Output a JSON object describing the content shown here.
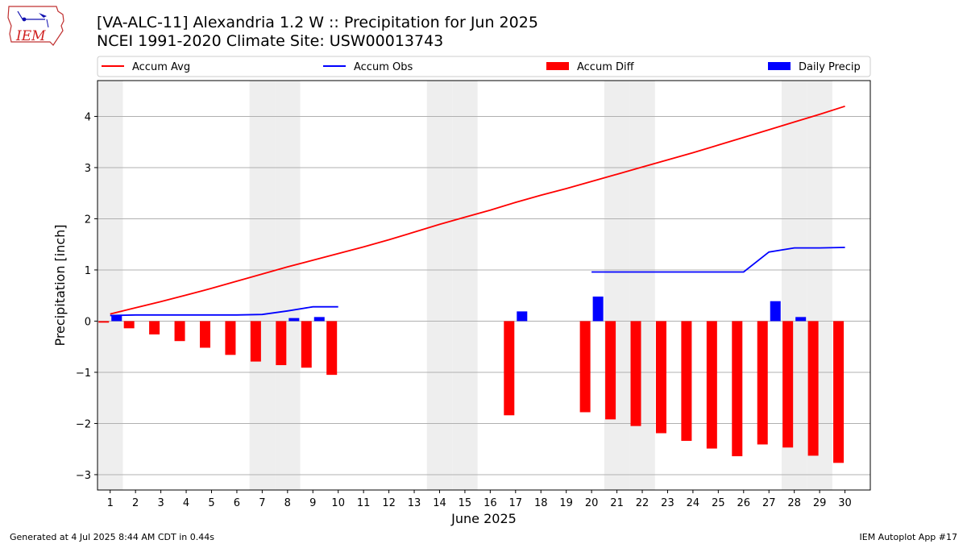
{
  "header": {
    "title_line1": "[VA-ALC-11] Alexandria 1.2 W :: Precipitation for Jun 2025",
    "title_line2": "NCEI 1991-2020 Climate Site: USW00013743",
    "logo_text": "IEM"
  },
  "footer": {
    "left": "Generated at 4 Jul 2025 8:44 AM CDT in 0.44s",
    "right": "IEM Autoplot App #17"
  },
  "colors": {
    "avg": "#ff0000",
    "obs": "#0000ff",
    "diff": "#ff0000",
    "daily": "#0000ff",
    "weekend": "#eeeeee",
    "grid": "#b0b0b0"
  },
  "chart_data": {
    "type": "bar",
    "xlabel": "June 2025",
    "ylabel": "Precipitation [inch]",
    "xlim": [
      0.5,
      31
    ],
    "ylim": [
      -3.3,
      4.7
    ],
    "yticks": [
      -3,
      -2,
      -1,
      0,
      1,
      2,
      3,
      4
    ],
    "ytick_labels": [
      "−3",
      "−2",
      "−1",
      "0",
      "1",
      "2",
      "3",
      "4"
    ],
    "days": [
      1,
      2,
      3,
      4,
      5,
      6,
      7,
      8,
      9,
      10,
      11,
      12,
      13,
      14,
      15,
      16,
      17,
      18,
      19,
      20,
      21,
      22,
      23,
      24,
      25,
      26,
      27,
      28,
      29,
      30
    ],
    "weekend_days": [
      1,
      7,
      8,
      14,
      15,
      21,
      22,
      28,
      29
    ],
    "grid": true,
    "legend_placement": "top, outside",
    "legend": [
      "Accum Avg",
      "Accum Obs",
      "Accum Diff",
      "Daily Precip"
    ],
    "series": [
      {
        "name": "Accum Avg",
        "type": "line",
        "values": [
          0.14,
          0.26,
          0.38,
          0.51,
          0.64,
          0.78,
          0.92,
          1.06,
          1.19,
          1.32,
          1.45,
          1.59,
          1.74,
          1.89,
          2.03,
          2.17,
          2.32,
          2.46,
          2.59,
          2.73,
          2.87,
          3.01,
          3.15,
          3.29,
          3.44,
          3.59,
          3.74,
          3.89,
          4.04,
          4.2
        ]
      },
      {
        "name": "Accum Obs",
        "type": "line",
        "values": [
          0.11,
          0.12,
          0.12,
          0.12,
          0.12,
          0.12,
          0.13,
          0.2,
          0.28,
          0.28,
          null,
          null,
          null,
          null,
          null,
          null,
          null,
          null,
          null,
          0.96,
          0.96,
          0.96,
          0.96,
          0.96,
          0.96,
          0.96,
          1.35,
          1.43,
          1.43,
          1.44
        ]
      },
      {
        "name": "Accum Diff",
        "type": "bar",
        "values": [
          -0.03,
          -0.14,
          -0.26,
          -0.39,
          -0.52,
          -0.66,
          -0.79,
          -0.86,
          -0.91,
          -1.05,
          null,
          null,
          null,
          null,
          null,
          null,
          -1.84,
          null,
          null,
          -1.78,
          -1.92,
          -2.05,
          -2.19,
          -2.34,
          -2.49,
          -2.64,
          -2.41,
          -2.47,
          -2.63,
          -2.77
        ]
      },
      {
        "name": "Daily Precip",
        "type": "bar",
        "values": [
          0.11,
          null,
          null,
          null,
          null,
          null,
          null,
          0.06,
          0.08,
          null,
          null,
          null,
          null,
          null,
          null,
          null,
          0.19,
          null,
          null,
          0.48,
          null,
          null,
          null,
          null,
          null,
          null,
          0.39,
          0.08,
          null,
          null
        ]
      }
    ]
  }
}
